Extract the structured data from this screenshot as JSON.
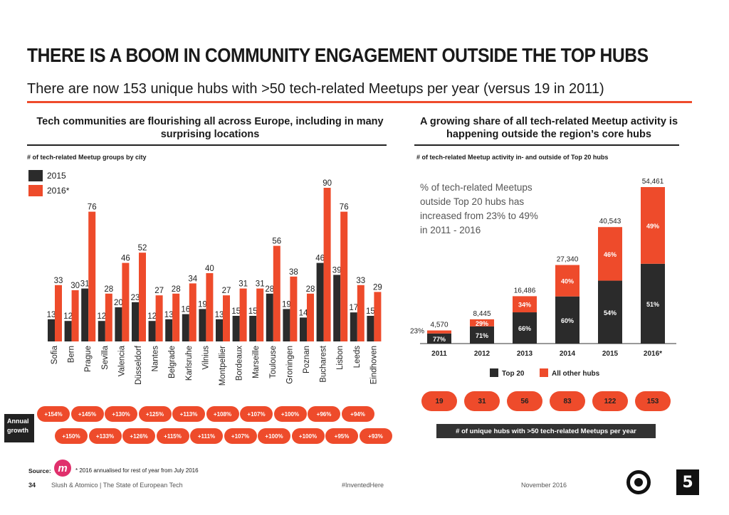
{
  "header": {
    "title": "THERE IS A BOOM IN COMMUNITY ENGAGEMENT OUTSIDE THE TOP HUBS",
    "subtitle": "There are now 153 unique hubs with >50 tech-related Meetups per year (versus 19 in 2011)"
  },
  "left": {
    "heading": "Tech communities are flourishing all across Europe, including in many surprising locations",
    "growth_label": "Annual growth",
    "growth_top": [
      "+154%",
      "+145%",
      "+130%",
      "+125%",
      "+113%",
      "+108%",
      "+107%",
      "+100%",
      "+96%",
      "+94%"
    ],
    "growth_bottom": [
      "+150%",
      "+133%",
      "+126%",
      "+115%",
      "+111%",
      "+107%",
      "+100%",
      "+100%",
      "+95%",
      "+93%"
    ]
  },
  "right": {
    "heading": "A growing share of all tech-related Meetup activity is happening outside the region’s core hubs",
    "annotation": "% of tech-related Meetups outside Top 20 hubs has increased from 23% to 49% in 2011 - 2016",
    "hub_counts": [
      "19",
      "31",
      "56",
      "83",
      "122",
      "153"
    ],
    "hubs_caption": "# of unique hubs with >50 tech-related Meetups per year"
  },
  "footer": {
    "source_label": "Source:",
    "meetup_logo": "m",
    "source_note": "* 2016 annualised for rest of year from July 2016",
    "page_number": "34",
    "credit": "Slush & Atomico | The State of European Tech",
    "hashtag": "#InventedHere",
    "date": "November 2016",
    "atomico_logo": "5"
  },
  "colors": {
    "accent": "#ee4b2b",
    "dark": "#2b2b2b"
  },
  "chart_data": [
    {
      "type": "bar",
      "title": "# of tech-related Meetup groups by city",
      "categories": [
        "Sofia",
        "Bern",
        "Prague",
        "Sevilla",
        "Valencia",
        "Düsseldorf",
        "Nantes",
        "Belgrade",
        "Karlsruhe",
        "Vilnius",
        "Montpellier",
        "Bordeaux",
        "Marseille",
        "Toulouse",
        "Groningen",
        "Poznan",
        "Bucharest",
        "Lisbon",
        "Leeds",
        "Eindhoven"
      ],
      "series": [
        {
          "name": "2015",
          "color": "#2b2b2b",
          "values": [
            13,
            12,
            31,
            12,
            20,
            23,
            12,
            13,
            16,
            19,
            13,
            15,
            15,
            28,
            19,
            14,
            46,
            39,
            17,
            15
          ]
        },
        {
          "name": "2016*",
          "color": "#ee4b2b",
          "values": [
            33,
            30,
            76,
            28,
            46,
            52,
            27,
            28,
            34,
            40,
            27,
            31,
            31,
            56,
            38,
            28,
            90,
            76,
            33,
            29
          ]
        }
      ],
      "ylim": [
        0,
        95
      ]
    },
    {
      "type": "bar",
      "stacked": true,
      "title": "# of tech-related Meetup activity in- and outside of Top 20 hubs",
      "categories": [
        "2011",
        "2012",
        "2013",
        "2014",
        "2015",
        "2016*"
      ],
      "totals": [
        "4,570",
        "8,445",
        "16,486",
        "27,340",
        "40,543",
        "54,461"
      ],
      "total_values": [
        4570,
        8445,
        16486,
        27340,
        40543,
        54461
      ],
      "series": [
        {
          "name": "Top 20",
          "color": "#2b2b2b",
          "percent": [
            77,
            71,
            66,
            60,
            54,
            51
          ],
          "labels": [
            "77%",
            "71%",
            "66%",
            "60%",
            "54%",
            "51%"
          ]
        },
        {
          "name": "All other hubs",
          "color": "#ee4b2b",
          "percent": [
            23,
            29,
            34,
            40,
            46,
            49
          ],
          "labels": [
            "23%",
            "29%",
            "34%",
            "40%",
            "46%",
            "49%"
          ]
        }
      ],
      "ylim": [
        0,
        60000
      ]
    }
  ]
}
